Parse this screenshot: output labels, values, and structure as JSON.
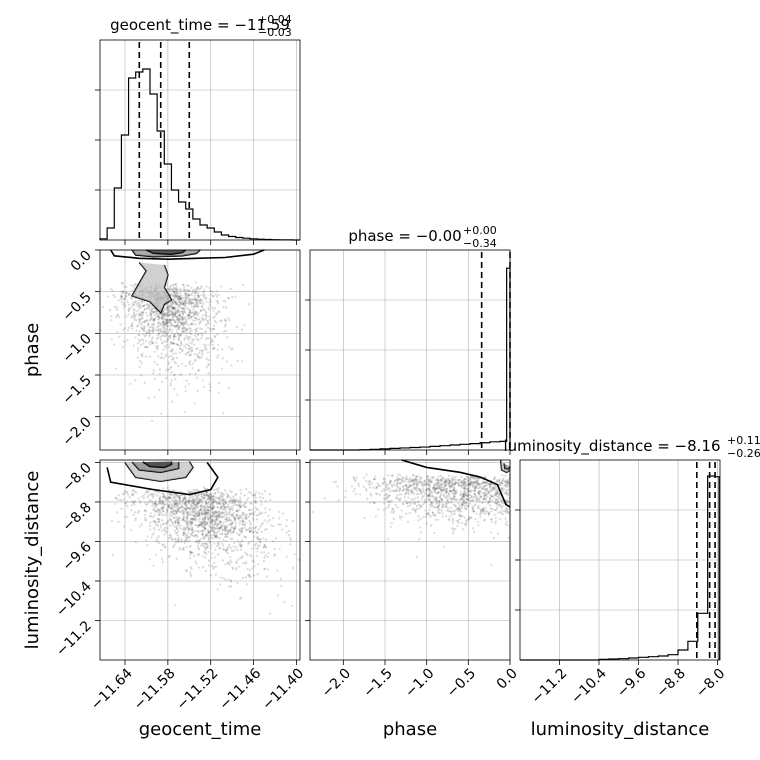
{
  "chart_data": [
    {
      "type": "histogram",
      "parameter": "geocent_time",
      "title": {
        "prefix": "geocent_time = −11.59",
        "plus": "+0.04",
        "minus": "−0.03"
      },
      "xlim": [
        -11.675,
        -11.395
      ],
      "ylim": [
        0,
        2000
      ],
      "bin_edges_start": -11.675,
      "bin_width": 0.01,
      "counts": [
        12,
        120,
        520,
        1050,
        1620,
        1680,
        1710,
        1460,
        1090,
        760,
        500,
        380,
        310,
        210,
        150,
        120,
        80,
        50,
        35,
        25,
        18,
        12,
        8,
        5,
        3,
        2,
        1,
        0
      ],
      "quantiles": [
        -11.62,
        -11.59,
        -11.55
      ],
      "grid": true
    },
    {
      "type": "histogram",
      "parameter": "phase",
      "title": {
        "prefix": "phase = −0.00",
        "plus": "+0.00",
        "minus": "−0.34"
      },
      "xlim": [
        -2.4,
        0.0
      ],
      "ylim": [
        0,
        4400
      ],
      "bin_edges_start": -2.4,
      "bin_width": 0.12,
      "counts": [
        0,
        0,
        0,
        0,
        0,
        5,
        15,
        25,
        35,
        45,
        55,
        65,
        80,
        95,
        110,
        125,
        140,
        160,
        180,
        190
      ],
      "spike": {
        "from": -0.04,
        "to": 0.0,
        "count": 4000
      },
      "quantiles": [
        -0.34,
        0.0
      ],
      "grid": true
    },
    {
      "type": "histogram",
      "parameter": "luminosity_distance",
      "title": {
        "prefix": "luminosity_distance = −8.16",
        "plus": "+0.11",
        "minus": "−0.26"
      },
      "xlim": [
        -12.0,
        -7.95
      ],
      "ylim": [
        0,
        3000
      ],
      "bin_edges_start": -12.0,
      "bin_width": 0.2,
      "counts": [
        0,
        0,
        0,
        0,
        0,
        0,
        0,
        0,
        10,
        15,
        20,
        30,
        40,
        50,
        60,
        80,
        150,
        280,
        700,
        1520
      ],
      "top_bins": [
        {
          "from": -8.2,
          "to": -8.05,
          "count": 2760
        },
        {
          "from": -8.05,
          "to": -7.97,
          "count": 2750
        }
      ],
      "quantiles": [
        -8.42,
        -8.16,
        -8.05
      ],
      "grid": true
    },
    {
      "type": "scatter",
      "x_parameter": "geocent_time",
      "y_parameter": "phase",
      "xlim": [
        -11.675,
        -11.395
      ],
      "ylim": [
        -2.4,
        0.0
      ],
      "cloud": {
        "cx": -11.585,
        "cy": -0.45,
        "sx": 0.035,
        "sy": 0.45,
        "n": 1400,
        "skew": 0.5
      },
      "contours": [
        [
          [
            -11.66,
            0.0
          ],
          [
            -11.655,
            -0.07
          ],
          [
            -11.62,
            -0.1
          ],
          [
            -11.58,
            -0.11
          ],
          [
            -11.54,
            -0.1
          ],
          [
            -11.5,
            -0.09
          ],
          [
            -11.46,
            -0.05
          ],
          [
            -11.445,
            0.0
          ]
        ],
        [
          [
            -11.62,
            -0.15
          ],
          [
            -11.61,
            -0.25
          ],
          [
            -11.62,
            -0.4
          ],
          [
            -11.63,
            -0.55
          ],
          [
            -11.605,
            -0.62
          ],
          [
            -11.59,
            -0.75
          ],
          [
            -11.585,
            -0.65
          ],
          [
            -11.575,
            -0.6
          ],
          [
            -11.585,
            -0.45
          ],
          [
            -11.58,
            -0.3
          ],
          [
            -11.585,
            -0.18
          ]
        ],
        [
          [
            -11.63,
            0.0
          ],
          [
            -11.625,
            -0.06
          ],
          [
            -11.6,
            -0.08
          ],
          [
            -11.56,
            -0.07
          ],
          [
            -11.54,
            -0.04
          ],
          [
            -11.535,
            0.0
          ]
        ],
        [
          [
            -11.61,
            0.0
          ],
          [
            -11.6,
            -0.04
          ],
          [
            -11.575,
            -0.05
          ],
          [
            -11.56,
            -0.03
          ],
          [
            -11.555,
            0.0
          ]
        ]
      ]
    },
    {
      "type": "scatter",
      "x_parameter": "geocent_time",
      "y_parameter": "luminosity_distance",
      "xlim": [
        -11.675,
        -11.395
      ],
      "ylim": [
        -12.0,
        -7.95
      ],
      "cloud": {
        "cx": -11.55,
        "cy": -8.6,
        "sx": 0.045,
        "sy": 0.7,
        "n": 1600,
        "skew": 1.0
      },
      "contours": [
        [
          [
            -11.665,
            -8.1
          ],
          [
            -11.66,
            -8.4
          ],
          [
            -11.6,
            -8.55
          ],
          [
            -11.55,
            -8.65
          ],
          [
            -11.52,
            -8.55
          ],
          [
            -11.51,
            -8.3
          ],
          [
            -11.525,
            -8.0
          ]
        ],
        [
          [
            -11.64,
            -8.0
          ],
          [
            -11.625,
            -8.3
          ],
          [
            -11.59,
            -8.38
          ],
          [
            -11.555,
            -8.3
          ],
          [
            -11.545,
            -8.1
          ],
          [
            -11.55,
            -7.98
          ]
        ],
        [
          [
            -11.63,
            -7.99
          ],
          [
            -11.62,
            -8.15
          ],
          [
            -11.59,
            -8.2
          ],
          [
            -11.565,
            -8.12
          ],
          [
            -11.565,
            -7.99
          ]
        ],
        [
          [
            -11.615,
            -7.99
          ],
          [
            -11.605,
            -8.08
          ],
          [
            -11.585,
            -8.1
          ],
          [
            -11.575,
            -8.04
          ],
          [
            -11.575,
            -7.98
          ]
        ]
      ]
    },
    {
      "type": "scatter",
      "x_parameter": "phase",
      "y_parameter": "luminosity_distance",
      "xlim": [
        -2.4,
        0.0
      ],
      "ylim": [
        -12.0,
        -7.95
      ],
      "cloud": {
        "cx": -0.7,
        "cy": -8.3,
        "sx": 0.6,
        "sy": 0.45,
        "n": 1500,
        "skew": 0.6
      },
      "contours": [
        [
          [
            -1.3,
            -7.95
          ],
          [
            -1.0,
            -8.1
          ],
          [
            -0.6,
            -8.2
          ],
          [
            -0.35,
            -8.3
          ],
          [
            -0.15,
            -8.45
          ],
          [
            -0.05,
            -8.85
          ],
          [
            0.0,
            -8.9
          ]
        ],
        [
          [
            -0.11,
            -7.95
          ],
          [
            -0.1,
            -8.15
          ],
          [
            -0.04,
            -8.2
          ],
          [
            0.0,
            -8.15
          ]
        ],
        [
          [
            -0.07,
            -8.02
          ],
          [
            -0.06,
            -8.12
          ],
          [
            -0.02,
            -8.13
          ],
          [
            0.0,
            -8.08
          ]
        ]
      ]
    }
  ],
  "axes": {
    "geocent_time": {
      "label": "geocent_time",
      "ticks": [
        "−11.64",
        "−11.58",
        "−11.52",
        "−11.46",
        "−11.40"
      ],
      "tick_values": [
        -11.64,
        -11.58,
        -11.52,
        -11.46,
        -11.4
      ]
    },
    "phase": {
      "label": "phase",
      "ticks": [
        "−2.0",
        "−1.5",
        "−1.0",
        "−0.5",
        "0.0"
      ],
      "tick_values": [
        -2.0,
        -1.5,
        -1.0,
        -0.5,
        0.0
      ]
    },
    "luminosity_distance": {
      "label": "luminosity_distance",
      "ticks": [
        "−11.2",
        "−10.4",
        "−9.6",
        "−8.8",
        "−8.0"
      ],
      "tick_values": [
        -11.2,
        -10.4,
        -9.6,
        -8.8,
        -8.0
      ]
    }
  }
}
